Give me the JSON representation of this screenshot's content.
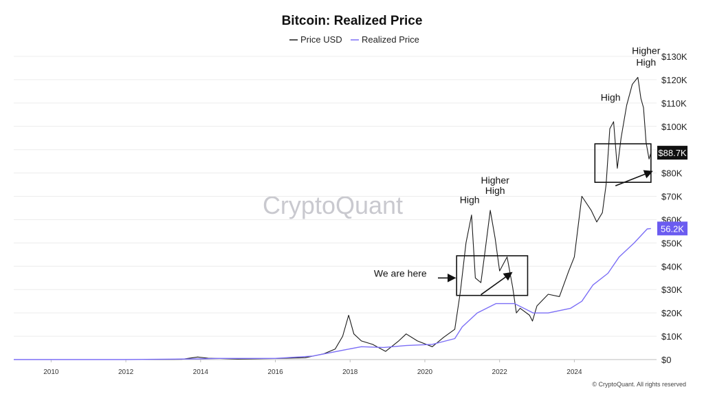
{
  "chart_data": {
    "type": "line",
    "title": "Bitcoin: Realized Price",
    "xlim": [
      2009.0,
      2026.2
    ],
    "ylim": [
      0,
      130000
    ],
    "x_ticks": [
      2010,
      2012,
      2014,
      2016,
      2018,
      2020,
      2022,
      2024
    ],
    "x_tick_labels": [
      "2010",
      "2012",
      "2014",
      "2016",
      "2018",
      "2020",
      "2022",
      "2024"
    ],
    "y_ticks": [
      0,
      10000,
      20000,
      30000,
      40000,
      50000,
      60000,
      70000,
      80000,
      90000,
      100000,
      110000,
      120000,
      130000
    ],
    "y_tick_labels": [
      "$0",
      "$10K",
      "$20K",
      "$30K",
      "$40K",
      "$50K",
      "$60K",
      "$70K",
      "$80K",
      "$90K",
      "$100K",
      "$110K",
      "$120K",
      "$130K"
    ],
    "grid": true,
    "legend_position": "top-center",
    "series": [
      {
        "name": "Price USD",
        "color": "#1a1a1a",
        "x": [
          2009.0,
          2010.5,
          2011.5,
          2012.5,
          2013.5,
          2013.92,
          2014.2,
          2015.0,
          2016.0,
          2016.8,
          2017.3,
          2017.6,
          2017.8,
          2017.96,
          2018.1,
          2018.3,
          2018.6,
          2018.95,
          2019.3,
          2019.5,
          2019.8,
          2020.2,
          2020.5,
          2020.8,
          2020.95,
          2021.1,
          2021.25,
          2021.35,
          2021.5,
          2021.6,
          2021.75,
          2021.88,
          2022.0,
          2022.2,
          2022.35,
          2022.45,
          2022.55,
          2022.8,
          2022.88,
          2023.0,
          2023.3,
          2023.6,
          2023.85,
          2024.0,
          2024.2,
          2024.45,
          2024.6,
          2024.75,
          2024.85,
          2024.95,
          2025.05,
          2025.15,
          2025.25,
          2025.4,
          2025.55,
          2025.7,
          2025.78,
          2025.85,
          2025.92,
          2026.0,
          2026.05
        ],
        "y": [
          0,
          10,
          8,
          10,
          120,
          1100,
          600,
          250,
          430,
          800,
          2500,
          4500,
          10000,
          19000,
          11000,
          8000,
          6500,
          3500,
          8000,
          11000,
          8000,
          5500,
          9500,
          13000,
          29000,
          50000,
          62000,
          35000,
          33000,
          45000,
          64000,
          52000,
          38000,
          44000,
          31000,
          20000,
          22000,
          19000,
          16500,
          23000,
          28000,
          27000,
          38000,
          44000,
          70000,
          64000,
          59000,
          63000,
          75000,
          99000,
          102000,
          82000,
          95000,
          109000,
          118000,
          121000,
          112000,
          108000,
          93000,
          86000,
          88700
        ]
      },
      {
        "name": "Realized Price",
        "color": "#7b6ef6",
        "x": [
          2009.0,
          2012.0,
          2013.9,
          2014.5,
          2016.0,
          2017.0,
          2017.9,
          2018.3,
          2018.9,
          2019.5,
          2020.2,
          2020.8,
          2021.0,
          2021.4,
          2021.9,
          2022.4,
          2022.9,
          2023.3,
          2023.9,
          2024.2,
          2024.5,
          2024.9,
          2025.2,
          2025.6,
          2025.95,
          2026.05
        ],
        "y": [
          0,
          5,
          300,
          500,
          500,
          1500,
          4300,
          5500,
          5200,
          6000,
          6500,
          9000,
          14000,
          20000,
          24000,
          24000,
          20000,
          20000,
          22000,
          25000,
          32000,
          37000,
          44000,
          50000,
          56000,
          56200
        ]
      }
    ],
    "value_labels": [
      {
        "series": "Price USD",
        "text": "$88.7K",
        "value": 88700
      },
      {
        "series": "Realized Price",
        "text": "56.2K",
        "value": 56200
      }
    ],
    "annotations": [
      {
        "text": "High",
        "x": 2021.2,
        "y": 67000
      },
      {
        "text": "Higher",
        "x": 2021.88,
        "y": 75500
      },
      {
        "text": "High",
        "x": 2021.88,
        "y": 71000
      },
      {
        "text": "We are here",
        "x": 2020.05,
        "y": 35500
      },
      {
        "text": "High",
        "x": 2024.97,
        "y": 111000
      },
      {
        "text": "Higher",
        "x": 2025.92,
        "y": 131000
      },
      {
        "text": "High",
        "x": 2025.92,
        "y": 126000
      }
    ],
    "boxes": [
      {
        "x0": 2020.85,
        "x1": 2022.75,
        "y0": 27500,
        "y1": 44500
      },
      {
        "x0": 2024.55,
        "x1": 2026.05,
        "y0": 76000,
        "y1": 92500
      }
    ],
    "arrows": [
      {
        "x0": 2021.5,
        "y0": 27800,
        "x1": 2022.3,
        "y1": 37000
      },
      {
        "x0": 2025.1,
        "y0": 74500,
        "x1": 2026.05,
        "y1": 80500
      },
      {
        "x0": 2020.35,
        "y0": 35000,
        "x1": 2020.78,
        "y1": 35000
      }
    ]
  },
  "watermark": "CryptoQuant",
  "footer": {
    "copyright": "© CryptoQuant. All rights reserved"
  }
}
